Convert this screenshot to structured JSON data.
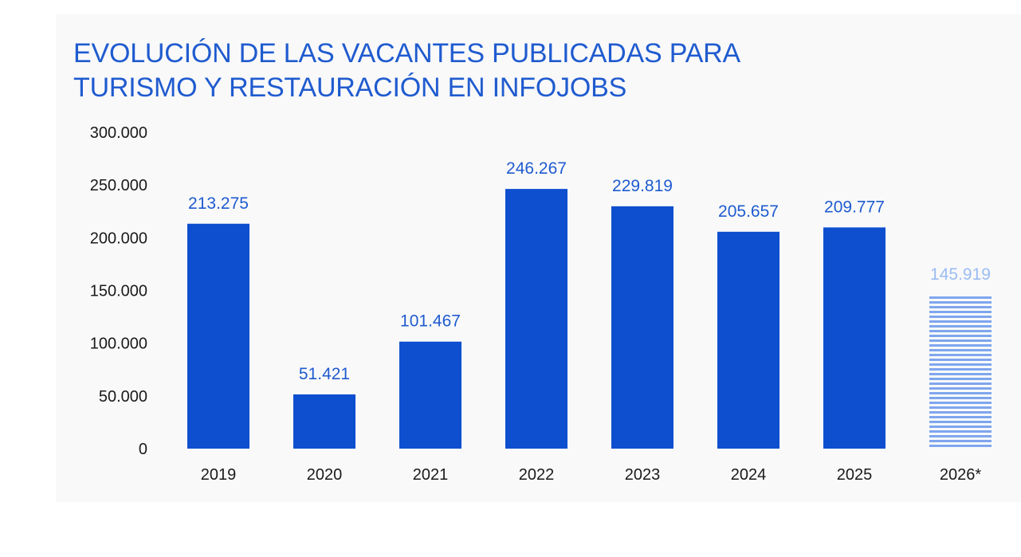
{
  "colors": {
    "bar": "#0d4fcf",
    "forecast": "#7fa6ee",
    "value_label": "#1f5bcf",
    "forecast_label": "#9bbcf2",
    "title": "#1f5bcf",
    "background": "#f9f9fa"
  },
  "chart_data": {
    "type": "bar",
    "title_lines": [
      "EVOLUCIÓN DE LAS VACANTES PUBLICADAS PARA",
      "TURISMO Y RESTAURACIÓN EN INFOJOBS"
    ],
    "categories": [
      "2019",
      "2020",
      "2021",
      "2022",
      "2023",
      "2024",
      "2025",
      "2026*"
    ],
    "values": [
      213275,
      51421,
      101467,
      246267,
      229819,
      205657,
      209777,
      145919
    ],
    "value_labels": [
      "213.275",
      "51.421",
      "101.467",
      "246.267",
      "229.819",
      "205.657",
      "209.777",
      "145.919"
    ],
    "forecast": [
      false,
      false,
      false,
      false,
      false,
      false,
      false,
      true
    ],
    "ylim": [
      0,
      300000
    ],
    "yticks": [
      0,
      50000,
      100000,
      150000,
      200000,
      250000,
      300000
    ],
    "ytick_labels": [
      "0",
      "50.000",
      "100.000",
      "150.000",
      "200.000",
      "250.000",
      "300.000"
    ],
    "xlabel": "",
    "ylabel": "",
    "grid": false,
    "legend": "none"
  }
}
